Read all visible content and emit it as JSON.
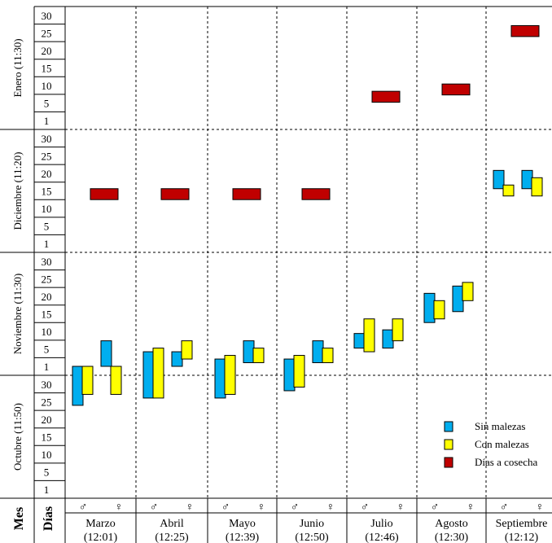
{
  "chart_data": {
    "type": "floating-bar",
    "row_axis_title": "Mes",
    "day_axis_title": "Días",
    "month_rows": [
      {
        "label": "Enero (11:30)",
        "ticks": [
          "30",
          "25",
          "20",
          "15",
          "10",
          "5",
          "1"
        ]
      },
      {
        "label": "Diciembre (11:20)",
        "ticks": [
          "30",
          "25",
          "20",
          "15",
          "10",
          "5",
          "1"
        ]
      },
      {
        "label": "Noviembre (11:30)",
        "ticks": [
          "30",
          "25",
          "20",
          "15",
          "10",
          "5",
          "1"
        ]
      },
      {
        "label": "Octubre (11:50)",
        "ticks": [
          "30",
          "25",
          "20",
          "15",
          "10",
          "5",
          "1"
        ]
      }
    ],
    "sex_labels": {
      "male": "♂",
      "female": "♀"
    },
    "columns": [
      {
        "month": "Marzo",
        "time": "(12:01)"
      },
      {
        "month": "Abril",
        "time": "(12:25)"
      },
      {
        "month": "Mayo",
        "time": "(12:39)"
      },
      {
        "month": "Junio",
        "time": "(12:50)"
      },
      {
        "month": "Julio",
        "time": "(12:46)"
      },
      {
        "month": "Agosto",
        "time": "(12:30)"
      },
      {
        "month": "Septiembre",
        "time": "(12:12)"
      }
    ],
    "legend": [
      {
        "label": "Sin malezas",
        "color": "#00aeef"
      },
      {
        "label": "Con malezas",
        "color": "#ffff00"
      },
      {
        "label": "Días a cosecha",
        "color": "#c00000"
      }
    ],
    "series": [
      {
        "name": "Sin malezas",
        "color": "#00aeef",
        "bars": [
          {
            "column": 0,
            "sex": "male",
            "from": {
              "month": "Octubre",
              "day": 24
            },
            "to": {
              "month": "Noviembre",
              "day": 1
            }
          },
          {
            "column": 0,
            "sex": "female",
            "from": {
              "month": "Noviembre",
              "day": 1
            },
            "to": {
              "month": "Noviembre",
              "day": 8
            }
          },
          {
            "column": 1,
            "sex": "male",
            "from": {
              "month": "Octubre",
              "day": 26
            },
            "to": {
              "month": "Noviembre",
              "day": 5
            }
          },
          {
            "column": 1,
            "sex": "female",
            "from": {
              "month": "Noviembre",
              "day": 1
            },
            "to": {
              "month": "Noviembre",
              "day": 5
            }
          },
          {
            "column": 2,
            "sex": "male",
            "from": {
              "month": "Octubre",
              "day": 26
            },
            "to": {
              "month": "Noviembre",
              "day": 3
            }
          },
          {
            "column": 2,
            "sex": "female",
            "from": {
              "month": "Noviembre",
              "day": 2
            },
            "to": {
              "month": "Noviembre",
              "day": 8
            }
          },
          {
            "column": 3,
            "sex": "male",
            "from": {
              "month": "Octubre",
              "day": 28
            },
            "to": {
              "month": "Noviembre",
              "day": 3
            }
          },
          {
            "column": 3,
            "sex": "female",
            "from": {
              "month": "Noviembre",
              "day": 2
            },
            "to": {
              "month": "Noviembre",
              "day": 8
            }
          },
          {
            "column": 4,
            "sex": "male",
            "from": {
              "month": "Noviembre",
              "day": 6
            },
            "to": {
              "month": "Noviembre",
              "day": 10
            }
          },
          {
            "column": 4,
            "sex": "female",
            "from": {
              "month": "Noviembre",
              "day": 6
            },
            "to": {
              "month": "Noviembre",
              "day": 11
            }
          },
          {
            "column": 5,
            "sex": "male",
            "from": {
              "month": "Noviembre",
              "day": 13
            },
            "to": {
              "month": "Noviembre",
              "day": 21
            }
          },
          {
            "column": 5,
            "sex": "female",
            "from": {
              "month": "Noviembre",
              "day": 16
            },
            "to": {
              "month": "Noviembre",
              "day": 23
            }
          },
          {
            "column": 6,
            "sex": "male",
            "from": {
              "month": "Diciembre",
              "day": 16
            },
            "to": {
              "month": "Diciembre",
              "day": 21
            }
          },
          {
            "column": 6,
            "sex": "female",
            "from": {
              "month": "Diciembre",
              "day": 16
            },
            "to": {
              "month": "Diciembre",
              "day": 21
            }
          }
        ]
      },
      {
        "name": "Con malezas",
        "color": "#ffff00",
        "bars": [
          {
            "column": 0,
            "sex": "male",
            "from": {
              "month": "Octubre",
              "day": 27
            },
            "to": {
              "month": "Noviembre",
              "day": 1
            }
          },
          {
            "column": 0,
            "sex": "female",
            "from": {
              "month": "Octubre",
              "day": 27
            },
            "to": {
              "month": "Noviembre",
              "day": 1
            }
          },
          {
            "column": 1,
            "sex": "male",
            "from": {
              "month": "Octubre",
              "day": 26
            },
            "to": {
              "month": "Noviembre",
              "day": 6
            }
          },
          {
            "column": 1,
            "sex": "female",
            "from": {
              "month": "Noviembre",
              "day": 3
            },
            "to": {
              "month": "Noviembre",
              "day": 8
            }
          },
          {
            "column": 2,
            "sex": "male",
            "from": {
              "month": "Octubre",
              "day": 27
            },
            "to": {
              "month": "Noviembre",
              "day": 4
            }
          },
          {
            "column": 2,
            "sex": "female",
            "from": {
              "month": "Noviembre",
              "day": 2
            },
            "to": {
              "month": "Noviembre",
              "day": 6
            }
          },
          {
            "column": 3,
            "sex": "male",
            "from": {
              "month": "Octubre",
              "day": 29
            },
            "to": {
              "month": "Noviembre",
              "day": 4
            }
          },
          {
            "column": 3,
            "sex": "female",
            "from": {
              "month": "Noviembre",
              "day": 2
            },
            "to": {
              "month": "Noviembre",
              "day": 6
            }
          },
          {
            "column": 4,
            "sex": "male",
            "from": {
              "month": "Noviembre",
              "day": 5
            },
            "to": {
              "month": "Noviembre",
              "day": 14
            }
          },
          {
            "column": 4,
            "sex": "female",
            "from": {
              "month": "Noviembre",
              "day": 8
            },
            "to": {
              "month": "Noviembre",
              "day": 14
            }
          },
          {
            "column": 5,
            "sex": "male",
            "from": {
              "month": "Noviembre",
              "day": 14
            },
            "to": {
              "month": "Noviembre",
              "day": 19
            }
          },
          {
            "column": 5,
            "sex": "female",
            "from": {
              "month": "Noviembre",
              "day": 19
            },
            "to": {
              "month": "Noviembre",
              "day": 24
            }
          },
          {
            "column": 6,
            "sex": "male",
            "from": {
              "month": "Diciembre",
              "day": 14
            },
            "to": {
              "month": "Diciembre",
              "day": 17
            }
          },
          {
            "column": 6,
            "sex": "female",
            "from": {
              "month": "Diciembre",
              "day": 14
            },
            "to": {
              "month": "Diciembre",
              "day": 19
            }
          }
        ]
      },
      {
        "name": "Días a cosecha",
        "color": "#c00000",
        "bars": [
          {
            "column": 0,
            "from": {
              "month": "Diciembre",
              "day": 13
            },
            "to": {
              "month": "Diciembre",
              "day": 16
            }
          },
          {
            "column": 1,
            "from": {
              "month": "Diciembre",
              "day": 13
            },
            "to": {
              "month": "Diciembre",
              "day": 16
            }
          },
          {
            "column": 2,
            "from": {
              "month": "Diciembre",
              "day": 13
            },
            "to": {
              "month": "Diciembre",
              "day": 16
            }
          },
          {
            "column": 3,
            "from": {
              "month": "Diciembre",
              "day": 13
            },
            "to": {
              "month": "Diciembre",
              "day": 16
            }
          },
          {
            "column": 4,
            "from": {
              "month": "Enero",
              "day": 6
            },
            "to": {
              "month": "Enero",
              "day": 9
            }
          },
          {
            "column": 5,
            "from": {
              "month": "Enero",
              "day": 8
            },
            "to": {
              "month": "Enero",
              "day": 11
            }
          },
          {
            "column": 6,
            "from": {
              "month": "Enero",
              "day": 24
            },
            "to": {
              "month": "Enero",
              "day": 27
            }
          }
        ]
      }
    ]
  }
}
